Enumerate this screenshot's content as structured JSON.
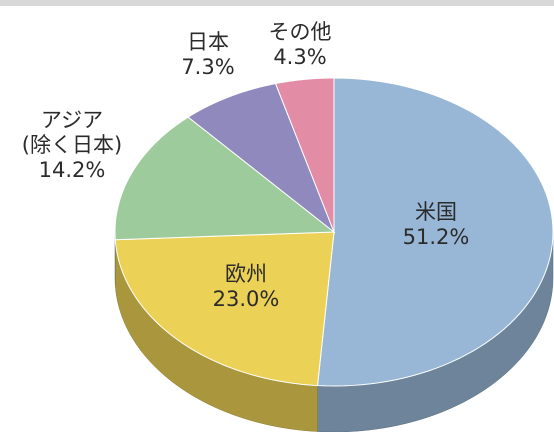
{
  "chart_data": {
    "type": "pie",
    "categories": [
      "米国",
      "欧州",
      "アジア\n(除く日本)",
      "日本",
      "その他"
    ],
    "values": [
      51.2,
      23.0,
      14.2,
      7.3,
      4.3
    ],
    "value_labels": [
      "51.2%",
      "23.0%",
      "14.2%",
      "7.3%",
      "4.3%"
    ],
    "colors": [
      "#98b7d6",
      "#ebd155",
      "#9ecb9c",
      "#9089bd",
      "#e38ca5"
    ]
  }
}
